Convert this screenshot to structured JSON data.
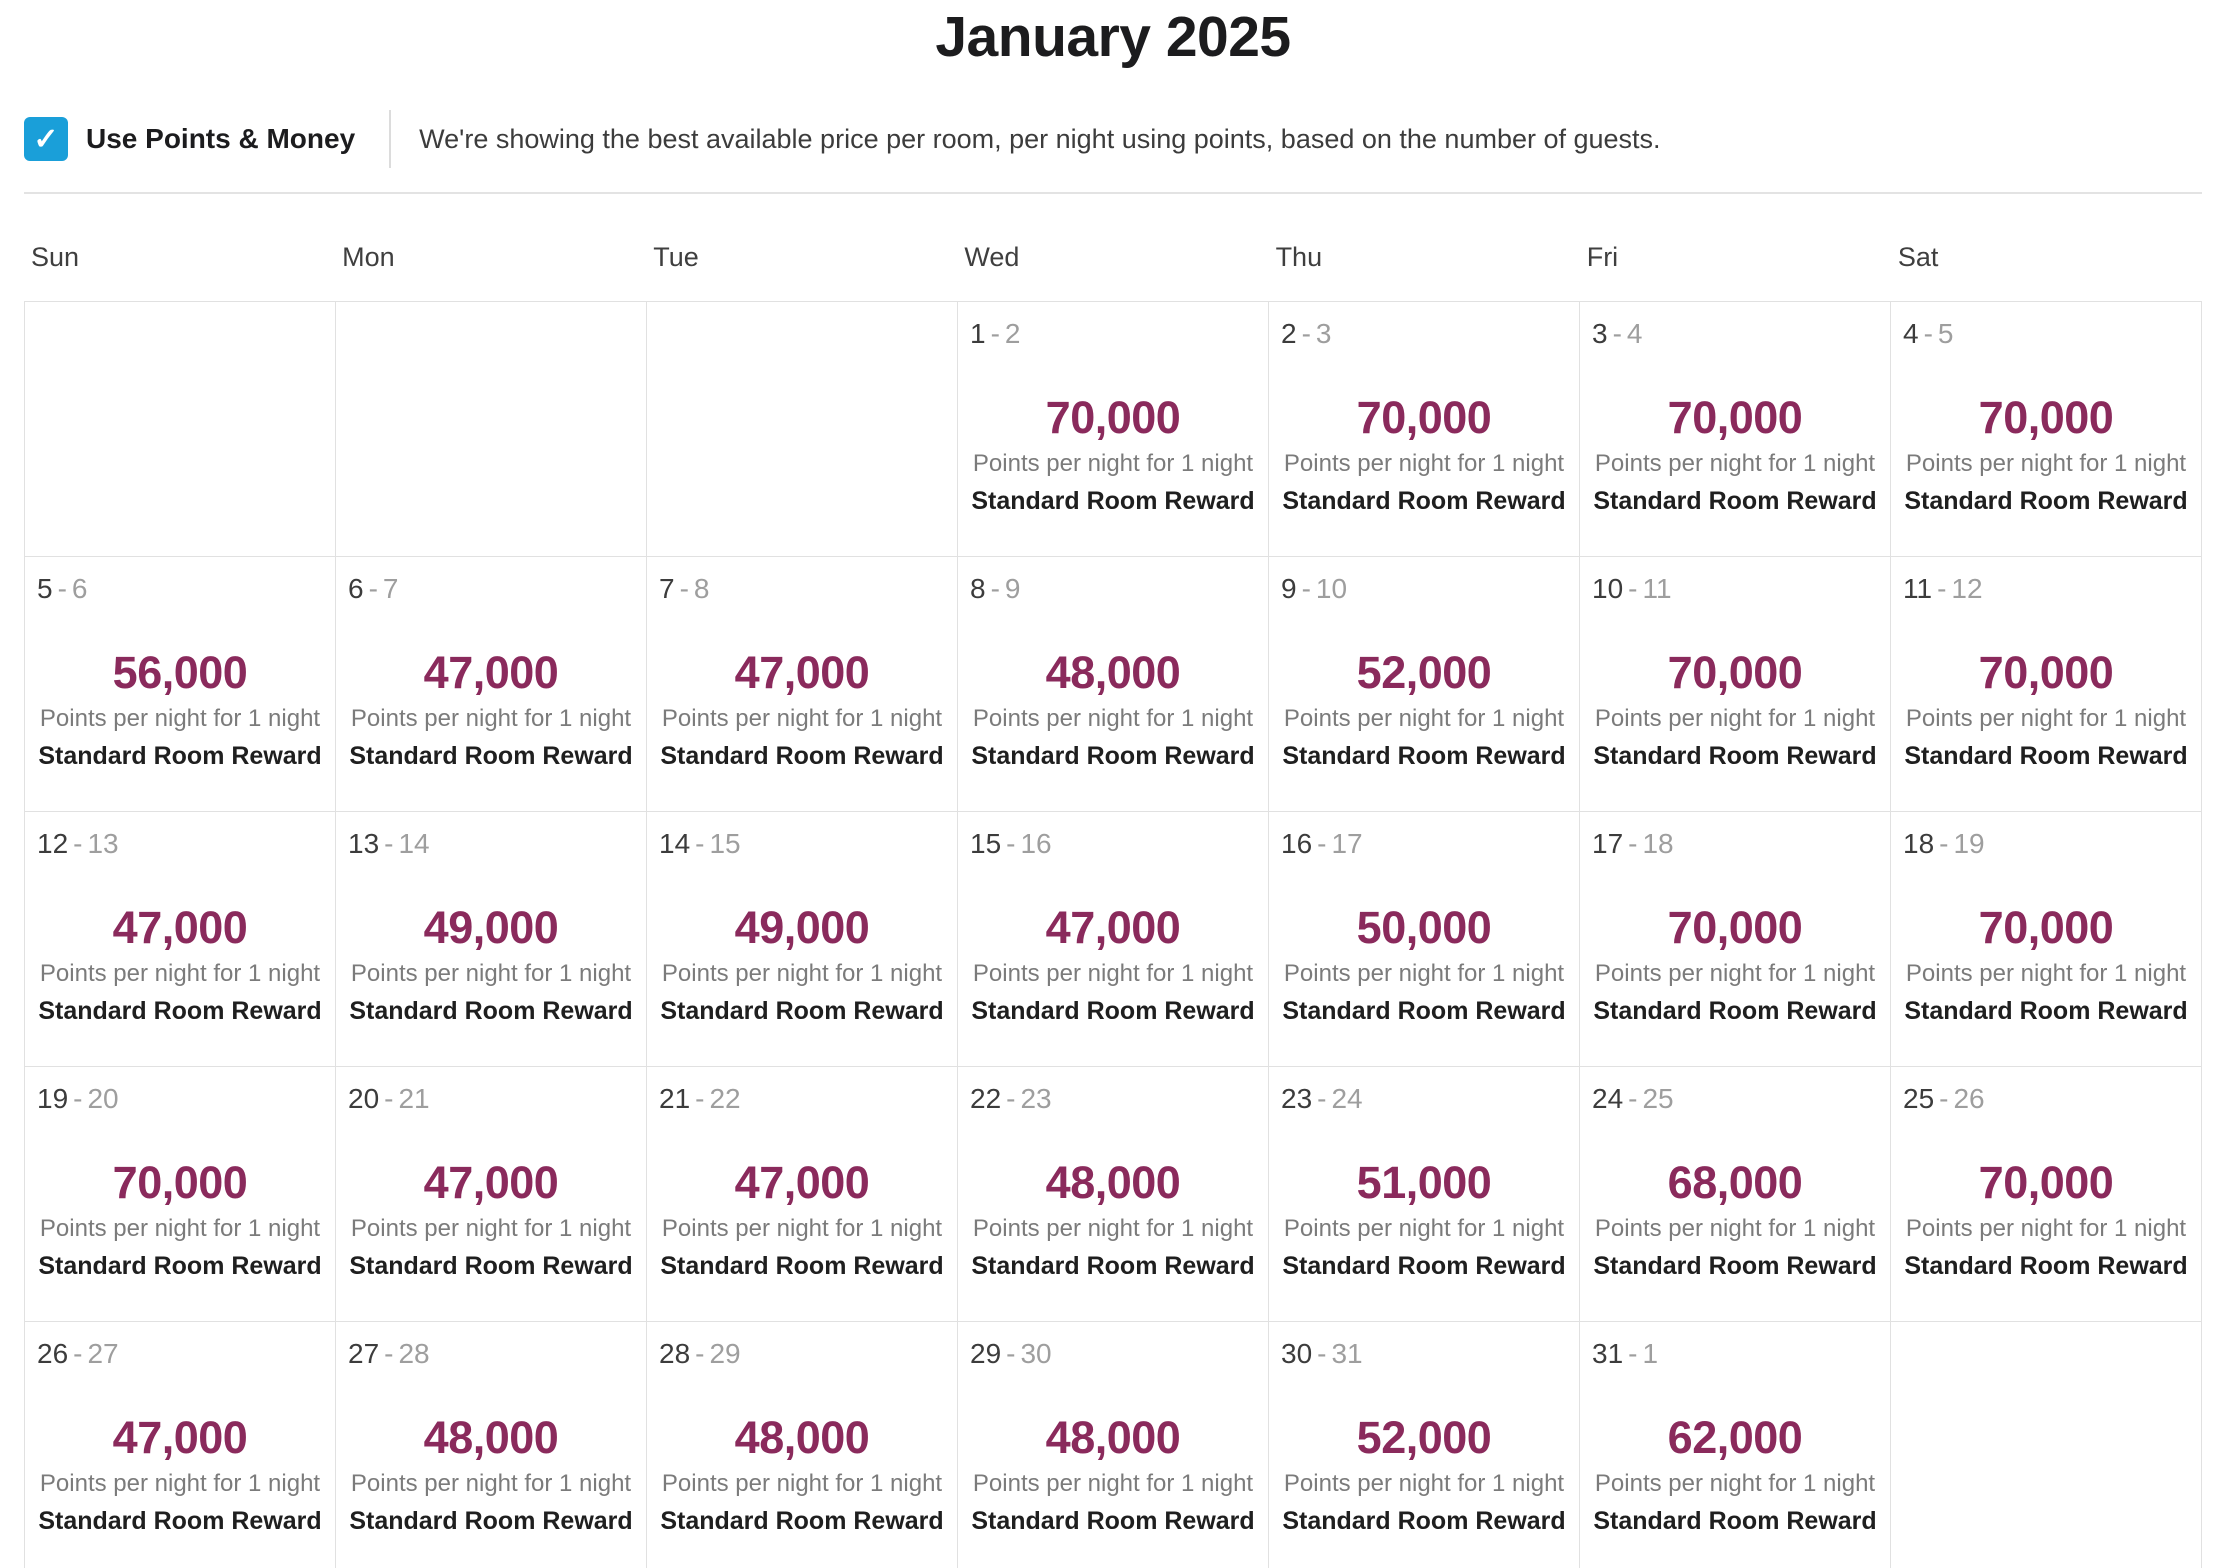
{
  "title": "January 2025",
  "toolbar": {
    "checkbox_label": "Use Points & Money",
    "checkbox_checked": true,
    "check_glyph": "✓",
    "description": "We're showing the best available price per room, per night using points, based on the number of guests."
  },
  "calendar": {
    "weekdays": [
      "Sun",
      "Mon",
      "Tue",
      "Wed",
      "Thu",
      "Fri",
      "Sat"
    ],
    "date_separator": "-",
    "points_caption": "Points per night for 1 night",
    "room_label": "Standard Room Reward",
    "weeks": [
      [
        null,
        null,
        null,
        {
          "start": "1",
          "end": "2",
          "points": "70,000"
        },
        {
          "start": "2",
          "end": "3",
          "points": "70,000"
        },
        {
          "start": "3",
          "end": "4",
          "points": "70,000"
        },
        {
          "start": "4",
          "end": "5",
          "points": "70,000"
        }
      ],
      [
        {
          "start": "5",
          "end": "6",
          "points": "56,000"
        },
        {
          "start": "6",
          "end": "7",
          "points": "47,000"
        },
        {
          "start": "7",
          "end": "8",
          "points": "47,000"
        },
        {
          "start": "8",
          "end": "9",
          "points": "48,000"
        },
        {
          "start": "9",
          "end": "10",
          "points": "52,000"
        },
        {
          "start": "10",
          "end": "11",
          "points": "70,000"
        },
        {
          "start": "11",
          "end": "12",
          "points": "70,000"
        }
      ],
      [
        {
          "start": "12",
          "end": "13",
          "points": "47,000"
        },
        {
          "start": "13",
          "end": "14",
          "points": "49,000"
        },
        {
          "start": "14",
          "end": "15",
          "points": "49,000"
        },
        {
          "start": "15",
          "end": "16",
          "points": "47,000"
        },
        {
          "start": "16",
          "end": "17",
          "points": "50,000"
        },
        {
          "start": "17",
          "end": "18",
          "points": "70,000"
        },
        {
          "start": "18",
          "end": "19",
          "points": "70,000"
        }
      ],
      [
        {
          "start": "19",
          "end": "20",
          "points": "70,000"
        },
        {
          "start": "20",
          "end": "21",
          "points": "47,000"
        },
        {
          "start": "21",
          "end": "22",
          "points": "47,000"
        },
        {
          "start": "22",
          "end": "23",
          "points": "48,000"
        },
        {
          "start": "23",
          "end": "24",
          "points": "51,000"
        },
        {
          "start": "24",
          "end": "25",
          "points": "68,000"
        },
        {
          "start": "25",
          "end": "26",
          "points": "70,000"
        }
      ],
      [
        {
          "start": "26",
          "end": "27",
          "points": "47,000"
        },
        {
          "start": "27",
          "end": "28",
          "points": "48,000"
        },
        {
          "start": "28",
          "end": "29",
          "points": "48,000"
        },
        {
          "start": "29",
          "end": "30",
          "points": "48,000"
        },
        {
          "start": "30",
          "end": "31",
          "points": "52,000"
        },
        {
          "start": "31",
          "end": "1",
          "points": "62,000"
        },
        null
      ]
    ]
  },
  "colors": {
    "points": "#8a2a5c",
    "checkbox_blue": "#1a9fd9",
    "title": "#1c1c1e"
  }
}
